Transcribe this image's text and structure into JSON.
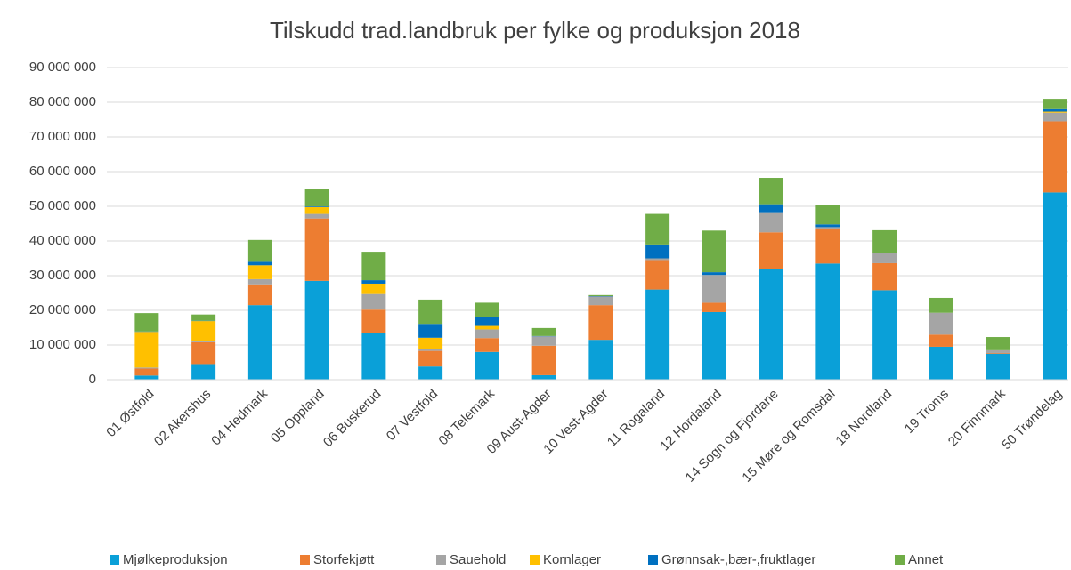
{
  "chart_data": {
    "type": "stacked_bar",
    "title": "Tilskudd trad.landbruk per fylke og produksjon 2018",
    "categories": [
      "01 Østfold",
      "02 Akershus",
      "04 Hedmark",
      "05 Oppland",
      "06 Buskerud",
      "07 Vestfold",
      "08 Telemark",
      "09 Aust-Agder",
      "10 Vest-Agder",
      "11 Rogaland",
      "12 Hordaland",
      "14 Sogn og Fjordane",
      "15 Møre og Romsdal",
      "18 Nordland",
      "19 Troms",
      "20 Finnmark",
      "50 Trøndelag"
    ],
    "series": [
      {
        "name": "Mjølkeproduksjon",
        "color": "#0aa0d8",
        "values": [
          1200000,
          4500000,
          21500000,
          28500000,
          13500000,
          3800000,
          8000000,
          1300000,
          11500000,
          26000000,
          19500000,
          32000000,
          33500000,
          25800000,
          9500000,
          7500000,
          54000000
        ]
      },
      {
        "name": "Storfekjøtt",
        "color": "#ed7d31",
        "values": [
          2000000,
          6300000,
          6000000,
          18000000,
          6700000,
          4500000,
          4000000,
          8500000,
          10000000,
          8500000,
          2700000,
          10500000,
          10000000,
          7800000,
          3500000,
          200000,
          20500000
        ]
      },
      {
        "name": "Sauehold",
        "color": "#a5a5a5",
        "values": [
          300000,
          300000,
          1500000,
          1300000,
          4500000,
          500000,
          2500000,
          2700000,
          2500000,
          500000,
          8000000,
          5800000,
          500000,
          3000000,
          6300000,
          800000,
          2500000
        ]
      },
      {
        "name": "Kornlager",
        "color": "#ffc000",
        "values": [
          10300000,
          5800000,
          4000000,
          2000000,
          3000000,
          3300000,
          1000000,
          0,
          0,
          0,
          0,
          0,
          0,
          0,
          0,
          0,
          300000
        ]
      },
      {
        "name": "Grønnsak-,bær-,fruktlager",
        "color": "#0070c0",
        "values": [
          100000,
          100000,
          1000000,
          200000,
          1000000,
          4000000,
          2500000,
          100000,
          100000,
          4000000,
          800000,
          2300000,
          800000,
          0,
          0,
          0,
          700000
        ]
      },
      {
        "name": "Annet",
        "color": "#70ad47",
        "values": [
          5300000,
          1800000,
          6300000,
          5000000,
          8200000,
          7000000,
          4200000,
          2300000,
          300000,
          8800000,
          12000000,
          7600000,
          5700000,
          6500000,
          4300000,
          3800000,
          3000000
        ]
      }
    ],
    "ylim": [
      0,
      90000000
    ],
    "yticks": [
      0,
      {
        "value": 10000000,
        "label": "10 000 000"
      },
      {
        "value": 20000000,
        "label": "20 000 000"
      },
      {
        "value": 30000000,
        "label": "30 000 000"
      },
      {
        "value": 40000000,
        "label": "40 000 000"
      },
      {
        "value": 50000000,
        "label": "50 000 000"
      },
      {
        "value": 60000000,
        "label": "60 000 000"
      },
      {
        "value": 70000000,
        "label": "70 000 000"
      },
      {
        "value": 80000000,
        "label": "80 000 000"
      },
      {
        "value": 90000000,
        "label": "90 000 000"
      }
    ],
    "grid": true,
    "legend": "bottom"
  }
}
